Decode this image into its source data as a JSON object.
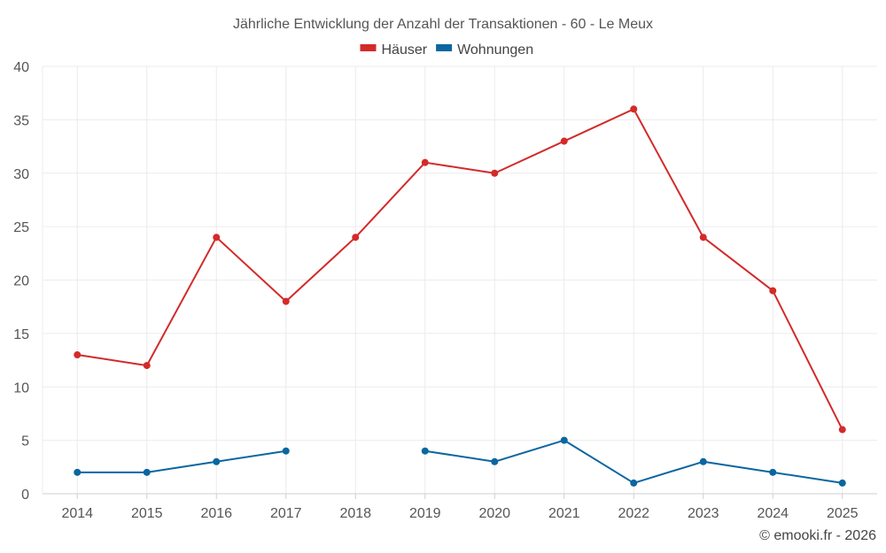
{
  "chart_data": {
    "type": "line",
    "title": "Jährliche Entwicklung der Anzahl der Transaktionen - 60 - Le Meux",
    "categories": [
      "2014",
      "2015",
      "2016",
      "2017",
      "2018",
      "2019",
      "2020",
      "2021",
      "2022",
      "2023",
      "2024",
      "2025"
    ],
    "ylim": [
      0,
      40
    ],
    "yticks": [
      0,
      5,
      10,
      15,
      20,
      25,
      30,
      35,
      40
    ],
    "grid": true,
    "legend_position": "top-center",
    "series": [
      {
        "name": "Häuser",
        "color": "#d32a2a",
        "values": [
          13,
          12,
          24,
          18,
          24,
          31,
          30,
          33,
          36,
          24,
          19,
          6
        ]
      },
      {
        "name": "Wohnungen",
        "color": "#0b66a0",
        "values": [
          2,
          2,
          3,
          4,
          null,
          4,
          3,
          5,
          1,
          3,
          2,
          1
        ]
      }
    ],
    "xlabel": "",
    "ylabel": ""
  },
  "credit": "© emooki.fr - 2026"
}
